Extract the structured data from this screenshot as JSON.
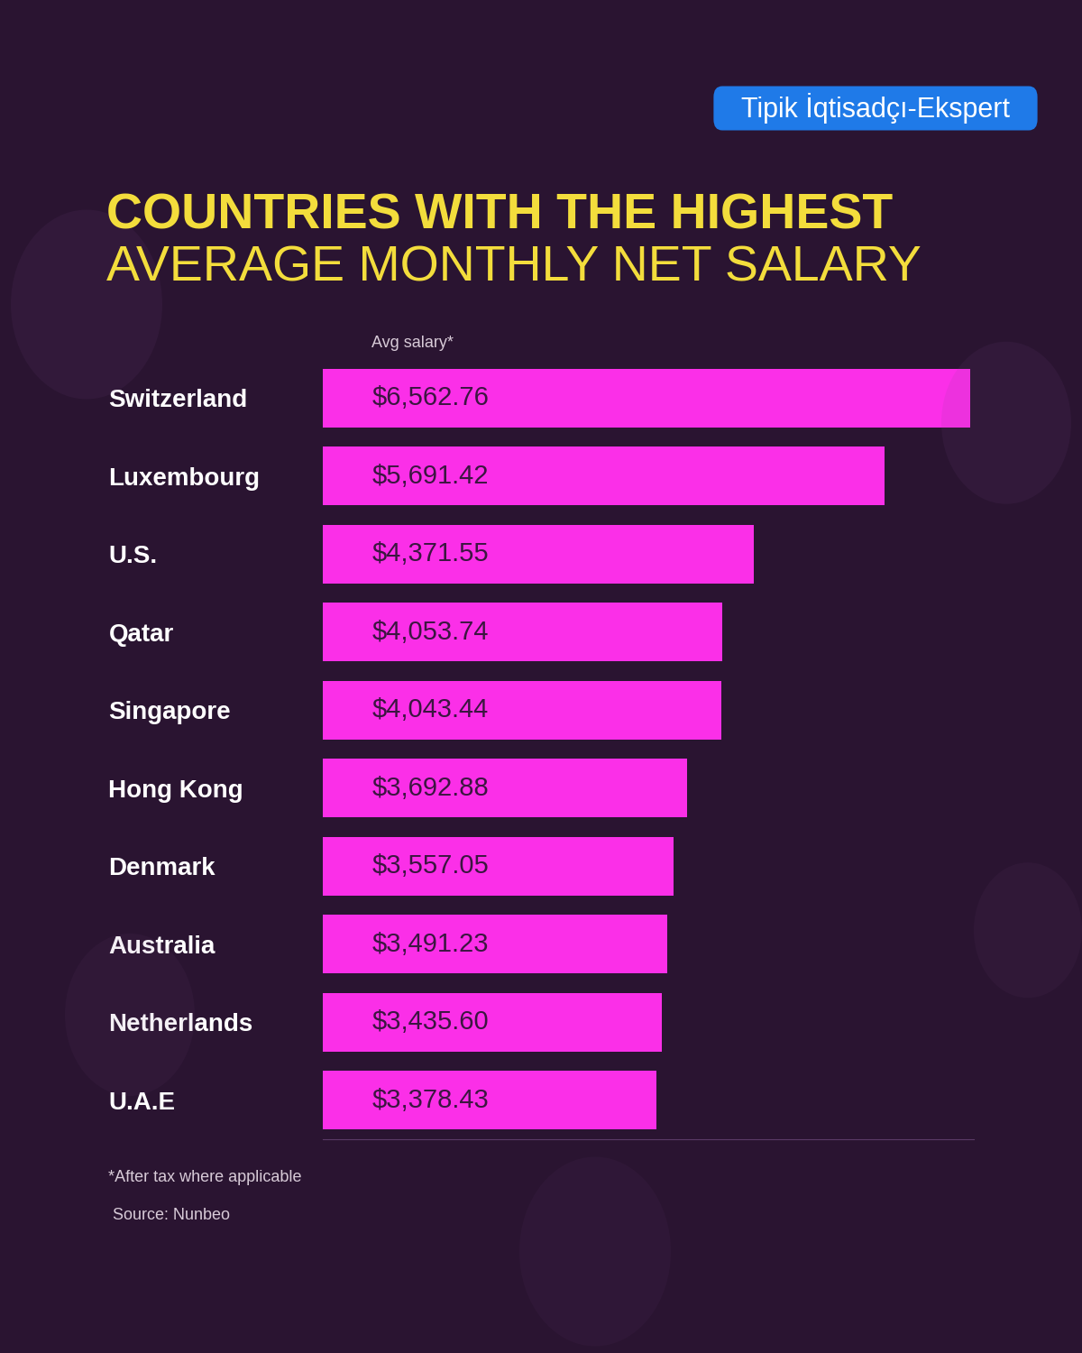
{
  "chart_data": {
    "type": "bar",
    "orientation": "horizontal",
    "title": "COUNTRIES WITH THE HIGHEST",
    "subtitle": "AVERAGE MONTHLY NET SALARY",
    "header": "Avg salary*",
    "note": "*After tax where applicable",
    "source": "Source: Nunbeo",
    "watermark": "Tipik İqtisadçı-Ekspert",
    "categories": [
      "Switzerland",
      "Luxembourg",
      "U.S.",
      "Qatar",
      "Singapore",
      "Hong Kong",
      "Denmark",
      "Australia",
      "Netherlands",
      "U.A.E"
    ],
    "values": [
      6562.76,
      5691.42,
      4371.55,
      4053.74,
      4043.44,
      3692.88,
      3557.05,
      3491.23,
      3435.6,
      3378.43
    ],
    "value_labels": [
      "$6,562.76",
      "$5,691.42",
      "$4,371.55",
      "$4,053.74",
      "$4,043.44",
      "$3,692.88",
      "$3,557.05",
      "$3,491.23",
      "$3,435.60",
      "$3,378.43"
    ],
    "color": "#fb2fe8",
    "xlim": [
      0,
      6600
    ],
    "xticks": [],
    "data_labels": true,
    "tick_labels": "y",
    "grid": false
  }
}
